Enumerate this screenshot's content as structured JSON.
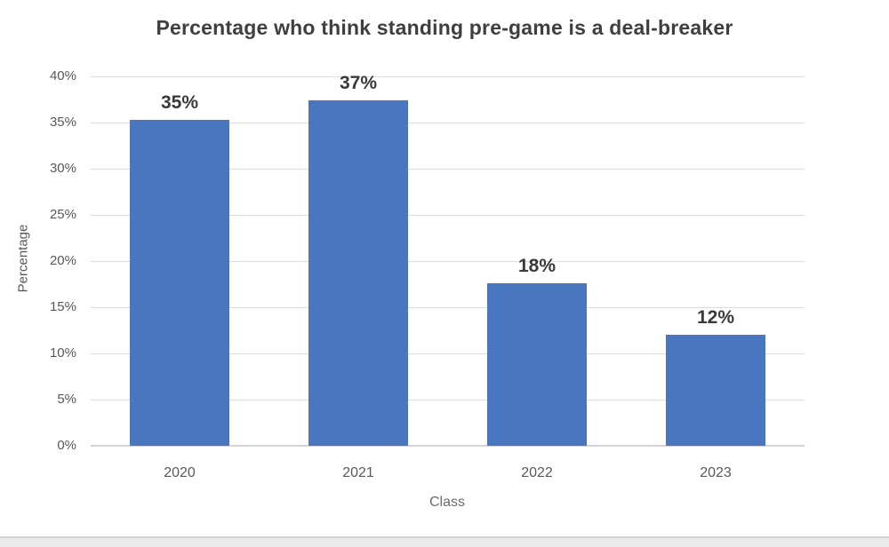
{
  "chart_data": {
    "type": "bar",
    "title": "Percentage who think standing pre-game is a deal-breaker",
    "xlabel": "Class",
    "ylabel": "Percentage",
    "categories": [
      "2020",
      "2021",
      "2022",
      "2023"
    ],
    "values": [
      35,
      37,
      18,
      12
    ],
    "values_drawn": [
      35.3,
      37.4,
      17.6,
      12.0
    ],
    "data_labels": [
      "35%",
      "37%",
      "18%",
      "12%"
    ],
    "y_ticks": [
      "0%",
      "5%",
      "10%",
      "15%",
      "20%",
      "25%",
      "30%",
      "35%",
      "40%"
    ],
    "ylim": [
      0,
      40
    ],
    "grid": true,
    "legend": false,
    "colors": {
      "bar": "#4a76bf",
      "gridline": "#dcdcdc",
      "axis_line": "#d4d4d4",
      "title_text": "#3f3f3f",
      "data_label_text": "#3a3a3a",
      "tick_text": "#595959",
      "axis_title_text": "#6b6b6b"
    }
  },
  "page": {
    "background": "#ffffff",
    "footer_band": "#ebebeb",
    "footer_line": "#d2d2d2"
  }
}
